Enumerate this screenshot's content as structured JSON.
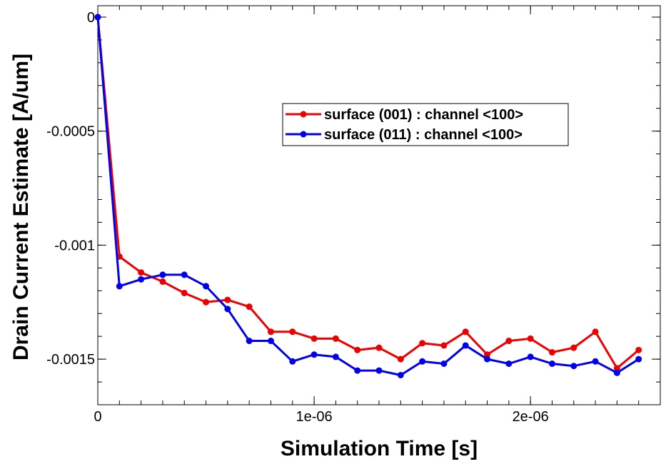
{
  "chart_data": {
    "type": "line",
    "title": "",
    "xlabel": "Simulation Time [s]",
    "ylabel": "Drain Current Estimate [A/um]",
    "xlim": [
      0,
      2.6e-06
    ],
    "ylim": [
      -0.0017,
      5e-05
    ],
    "grid": false,
    "legend_position": "top-right",
    "x_ticks": [
      {
        "value": 0,
        "label": "0"
      },
      {
        "value": 1e-06,
        "label": "1e-06"
      },
      {
        "value": 2e-06,
        "label": "2e-06"
      }
    ],
    "y_ticks": [
      {
        "value": 0,
        "label": "0"
      },
      {
        "value": -0.0005,
        "label": "-0.0005"
      },
      {
        "value": -0.001,
        "label": "-0.001"
      },
      {
        "value": -0.0015,
        "label": "-0.0015"
      }
    ],
    "x": [
      0,
      1e-07,
      2e-07,
      3e-07,
      4e-07,
      5e-07,
      6e-07,
      7e-07,
      8e-07,
      9e-07,
      1e-06,
      1.1e-06,
      1.2e-06,
      1.3e-06,
      1.4e-06,
      1.5e-06,
      1.6e-06,
      1.7e-06,
      1.8e-06,
      1.9e-06,
      2e-06,
      2.1e-06,
      2.2e-06,
      2.3e-06,
      2.4e-06,
      2.5e-06
    ],
    "series": [
      {
        "name": "surface (001) : channel <100>",
        "color": "#ee0000",
        "values": [
          0,
          -0.00105,
          -0.00112,
          -0.00116,
          -0.00121,
          -0.00125,
          -0.00124,
          -0.00127,
          -0.00138,
          -0.00138,
          -0.00141,
          -0.00141,
          -0.00146,
          -0.00145,
          -0.0015,
          -0.00143,
          -0.00144,
          -0.00138,
          -0.00148,
          -0.00142,
          -0.00141,
          -0.00147,
          -0.00145,
          -0.00138,
          -0.00154,
          -0.00146
        ]
      },
      {
        "name": "surface (011) : channel <100>",
        "color": "#0000ee",
        "values": [
          0,
          -0.00118,
          -0.00115,
          -0.00113,
          -0.00113,
          -0.00118,
          -0.00128,
          -0.00142,
          -0.00142,
          -0.00151,
          -0.00148,
          -0.00149,
          -0.00155,
          -0.00155,
          -0.00157,
          -0.00151,
          -0.00152,
          -0.00144,
          -0.0015,
          -0.00152,
          -0.00149,
          -0.00152,
          -0.00153,
          -0.00151,
          -0.00156,
          -0.0015
        ]
      }
    ]
  }
}
